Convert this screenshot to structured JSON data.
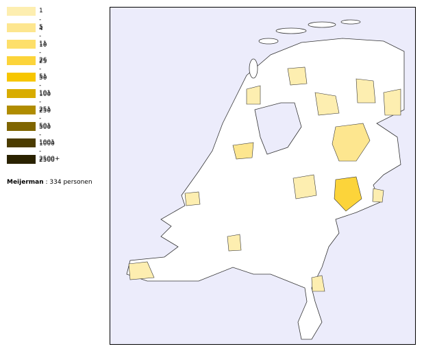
{
  "legend": [
    {
      "label": "1 - 4",
      "color": "#fdeeb0"
    },
    {
      "label": "5 - 10",
      "color": "#fde68f"
    },
    {
      "label": "11 - 25",
      "color": "#fddf6a"
    },
    {
      "label": "26 - 50",
      "color": "#fcd43a"
    },
    {
      "label": "51 - 100",
      "color": "#f7c600"
    },
    {
      "label": "101 - 250",
      "color": "#d8ac00"
    },
    {
      "label": "251 - 500",
      "color": "#b08c00"
    },
    {
      "label": "501 - 1000",
      "color": "#7f6500"
    },
    {
      "label": "1001 - 2500",
      "color": "#4b3c00"
    },
    {
      "label": "2500+",
      "color": "#2a2200"
    }
  ],
  "summary": {
    "name": "Meijerman",
    "text": ": 334 personen"
  }
}
